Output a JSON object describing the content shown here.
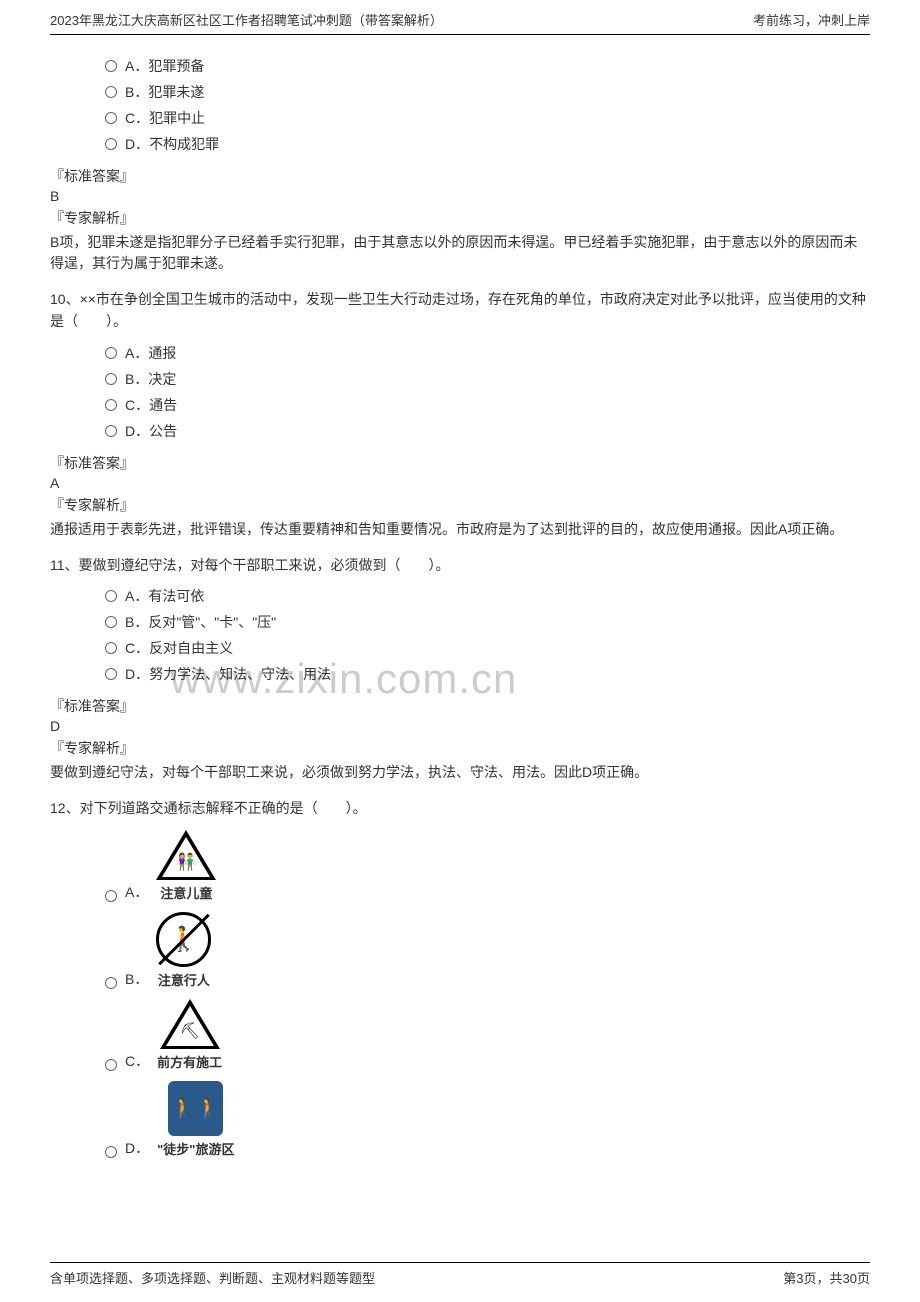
{
  "header": {
    "left": "2023年黑龙江大庆高新区社区工作者招聘笔试冲刺题（带答案解析）",
    "right": "考前练习，冲刺上岸"
  },
  "footer": {
    "left": "含单项选择题、多项选择题、判断题、主观材料题等题型",
    "right": "第3页，共30页"
  },
  "watermark": "www.zixin.com.cn",
  "q9": {
    "options": {
      "A": "A．犯罪预备",
      "B": "B．犯罪未遂",
      "C": "C．犯罪中止",
      "D": "D．不构成犯罪"
    },
    "answer_label": "『标准答案』",
    "answer": "B",
    "analysis_label": "『专家解析』",
    "analysis": "B项，犯罪未遂是指犯罪分子已经着手实行犯罪，由于其意志以外的原因而未得逞。甲已经着手实施犯罪，由于意志以外的原因而未得逞，其行为属于犯罪未遂。"
  },
  "q10": {
    "stem": "10、××市在争创全国卫生城市的活动中，发现一些卫生大行动走过场，存在死角的单位，市政府决定对此予以批评，应当使用的文种是（　　）。",
    "options": {
      "A": "A．通报",
      "B": "B．决定",
      "C": "C．通告",
      "D": "D．公告"
    },
    "answer_label": "『标准答案』",
    "answer": "A",
    "analysis_label": "『专家解析』",
    "analysis": "通报适用于表彰先进，批评错误，传达重要精神和告知重要情况。市政府是为了达到批评的目的，故应使用通报。因此A项正确。"
  },
  "q11": {
    "stem": "11、要做到遵纪守法，对每个干部职工来说，必须做到（　　）。",
    "options": {
      "A": "A．有法可依",
      "B": "B．反对\"管\"、\"卡\"、\"压\"",
      "C": "C．反对自由主义",
      "D": "D．努力学法、知法、守法、用法"
    },
    "answer_label": "『标准答案』",
    "answer": "D",
    "analysis_label": "『专家解析』",
    "analysis": "要做到遵纪守法，对每个干部职工来说，必须做到努力学法，执法、守法、用法。因此D项正确。"
  },
  "q12": {
    "stem": "12、对下列道路交通标志解释不正确的是（　　）。",
    "options": {
      "A_letter": "A．",
      "A_label": "注意儿童",
      "B_letter": "B．",
      "B_label": "注意行人",
      "C_letter": "C．",
      "C_label": "前方有施工",
      "D_letter": "D．",
      "D_label": "\"徒步\"旅游区"
    }
  }
}
